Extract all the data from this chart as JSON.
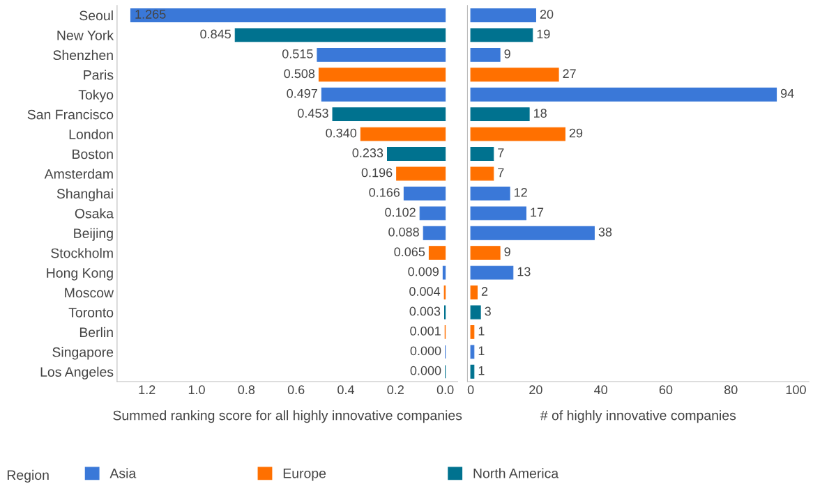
{
  "chart_data": [
    {
      "type": "bar",
      "orientation": "horizontal",
      "xlabel": "Summed ranking score for all highly innovative companies",
      "legend_title": "Region",
      "legend": "bottom",
      "categories": [
        "Seoul",
        "New York",
        "Shenzhen",
        "Paris",
        "Tokyo",
        "San Francisco",
        "London",
        "Boston",
        "Amsterdam",
        "Shanghai",
        "Osaka",
        "Beijing",
        "Stockholm",
        "Hong Kong",
        "Moscow",
        "Toronto",
        "Berlin",
        "Singapore",
        "Los Angeles"
      ],
      "xlim": [
        1.32,
        -0.05
      ],
      "xticks": [
        {
          "value": 1.2,
          "label": "1.2"
        },
        {
          "value": 1.0,
          "label": "1.0"
        },
        {
          "value": 0.8,
          "label": "0.8"
        },
        {
          "value": 0.6,
          "label": "0.6"
        },
        {
          "value": 0.4,
          "label": "0.4"
        },
        {
          "value": 0.2,
          "label": "0.2"
        },
        {
          "value": 0.0,
          "label": "0.0"
        }
      ],
      "series": [
        {
          "name": "Asia",
          "color": "#3a78d8",
          "values": [
            1.265,
            null,
            0.515,
            null,
            0.497,
            null,
            null,
            null,
            null,
            0.166,
            0.102,
            0.088,
            null,
            0.009,
            null,
            null,
            null,
            0.0,
            null
          ],
          "value_labels": [
            "1.265",
            null,
            "0.515",
            null,
            "0.497",
            null,
            null,
            null,
            null,
            "0.166",
            "0.102",
            "0.088",
            null,
            "0.009",
            null,
            null,
            null,
            "0.000",
            null
          ]
        },
        {
          "name": "Europe",
          "color": "#ff7000",
          "values": [
            null,
            null,
            null,
            0.508,
            null,
            null,
            0.34,
            null,
            0.196,
            null,
            null,
            null,
            0.065,
            null,
            0.004,
            null,
            0.001,
            null,
            null
          ],
          "value_labels": [
            null,
            null,
            null,
            "0.508",
            null,
            null,
            "0.340",
            null,
            "0.196",
            null,
            null,
            null,
            "0.065",
            null,
            "0.004",
            null,
            "0.001",
            null,
            null
          ]
        },
        {
          "name": "North America",
          "color": "#00728f",
          "values": [
            null,
            0.845,
            null,
            null,
            null,
            0.453,
            null,
            0.233,
            null,
            null,
            null,
            null,
            null,
            null,
            null,
            0.003,
            null,
            null,
            0.0
          ],
          "value_labels": [
            null,
            "0.845",
            null,
            null,
            null,
            "0.453",
            null,
            "0.233",
            null,
            null,
            null,
            null,
            null,
            null,
            null,
            "0.003",
            null,
            null,
            "0.000"
          ]
        }
      ]
    },
    {
      "type": "bar",
      "orientation": "horizontal",
      "xlabel": "# of highly innovative companies",
      "tick_labels": "x",
      "data_labels": true,
      "xlim": [
        -1,
        104
      ],
      "xticks": [
        0,
        20,
        40,
        60,
        80,
        100
      ],
      "series": [
        {
          "name": "Asia",
          "color": "#3a78d8",
          "values": [
            20,
            null,
            9,
            null,
            94,
            null,
            null,
            null,
            null,
            12,
            17,
            38,
            null,
            13,
            null,
            null,
            null,
            1,
            null
          ]
        },
        {
          "name": "Europe",
          "color": "#ff7000",
          "values": [
            null,
            null,
            null,
            27,
            null,
            null,
            29,
            null,
            7,
            null,
            null,
            null,
            9,
            null,
            2,
            null,
            1,
            null,
            null
          ]
        },
        {
          "name": "North America",
          "color": "#00728f",
          "values": [
            null,
            19,
            null,
            null,
            null,
            18,
            null,
            7,
            null,
            null,
            null,
            null,
            null,
            null,
            null,
            3,
            null,
            null,
            1
          ]
        }
      ]
    }
  ]
}
